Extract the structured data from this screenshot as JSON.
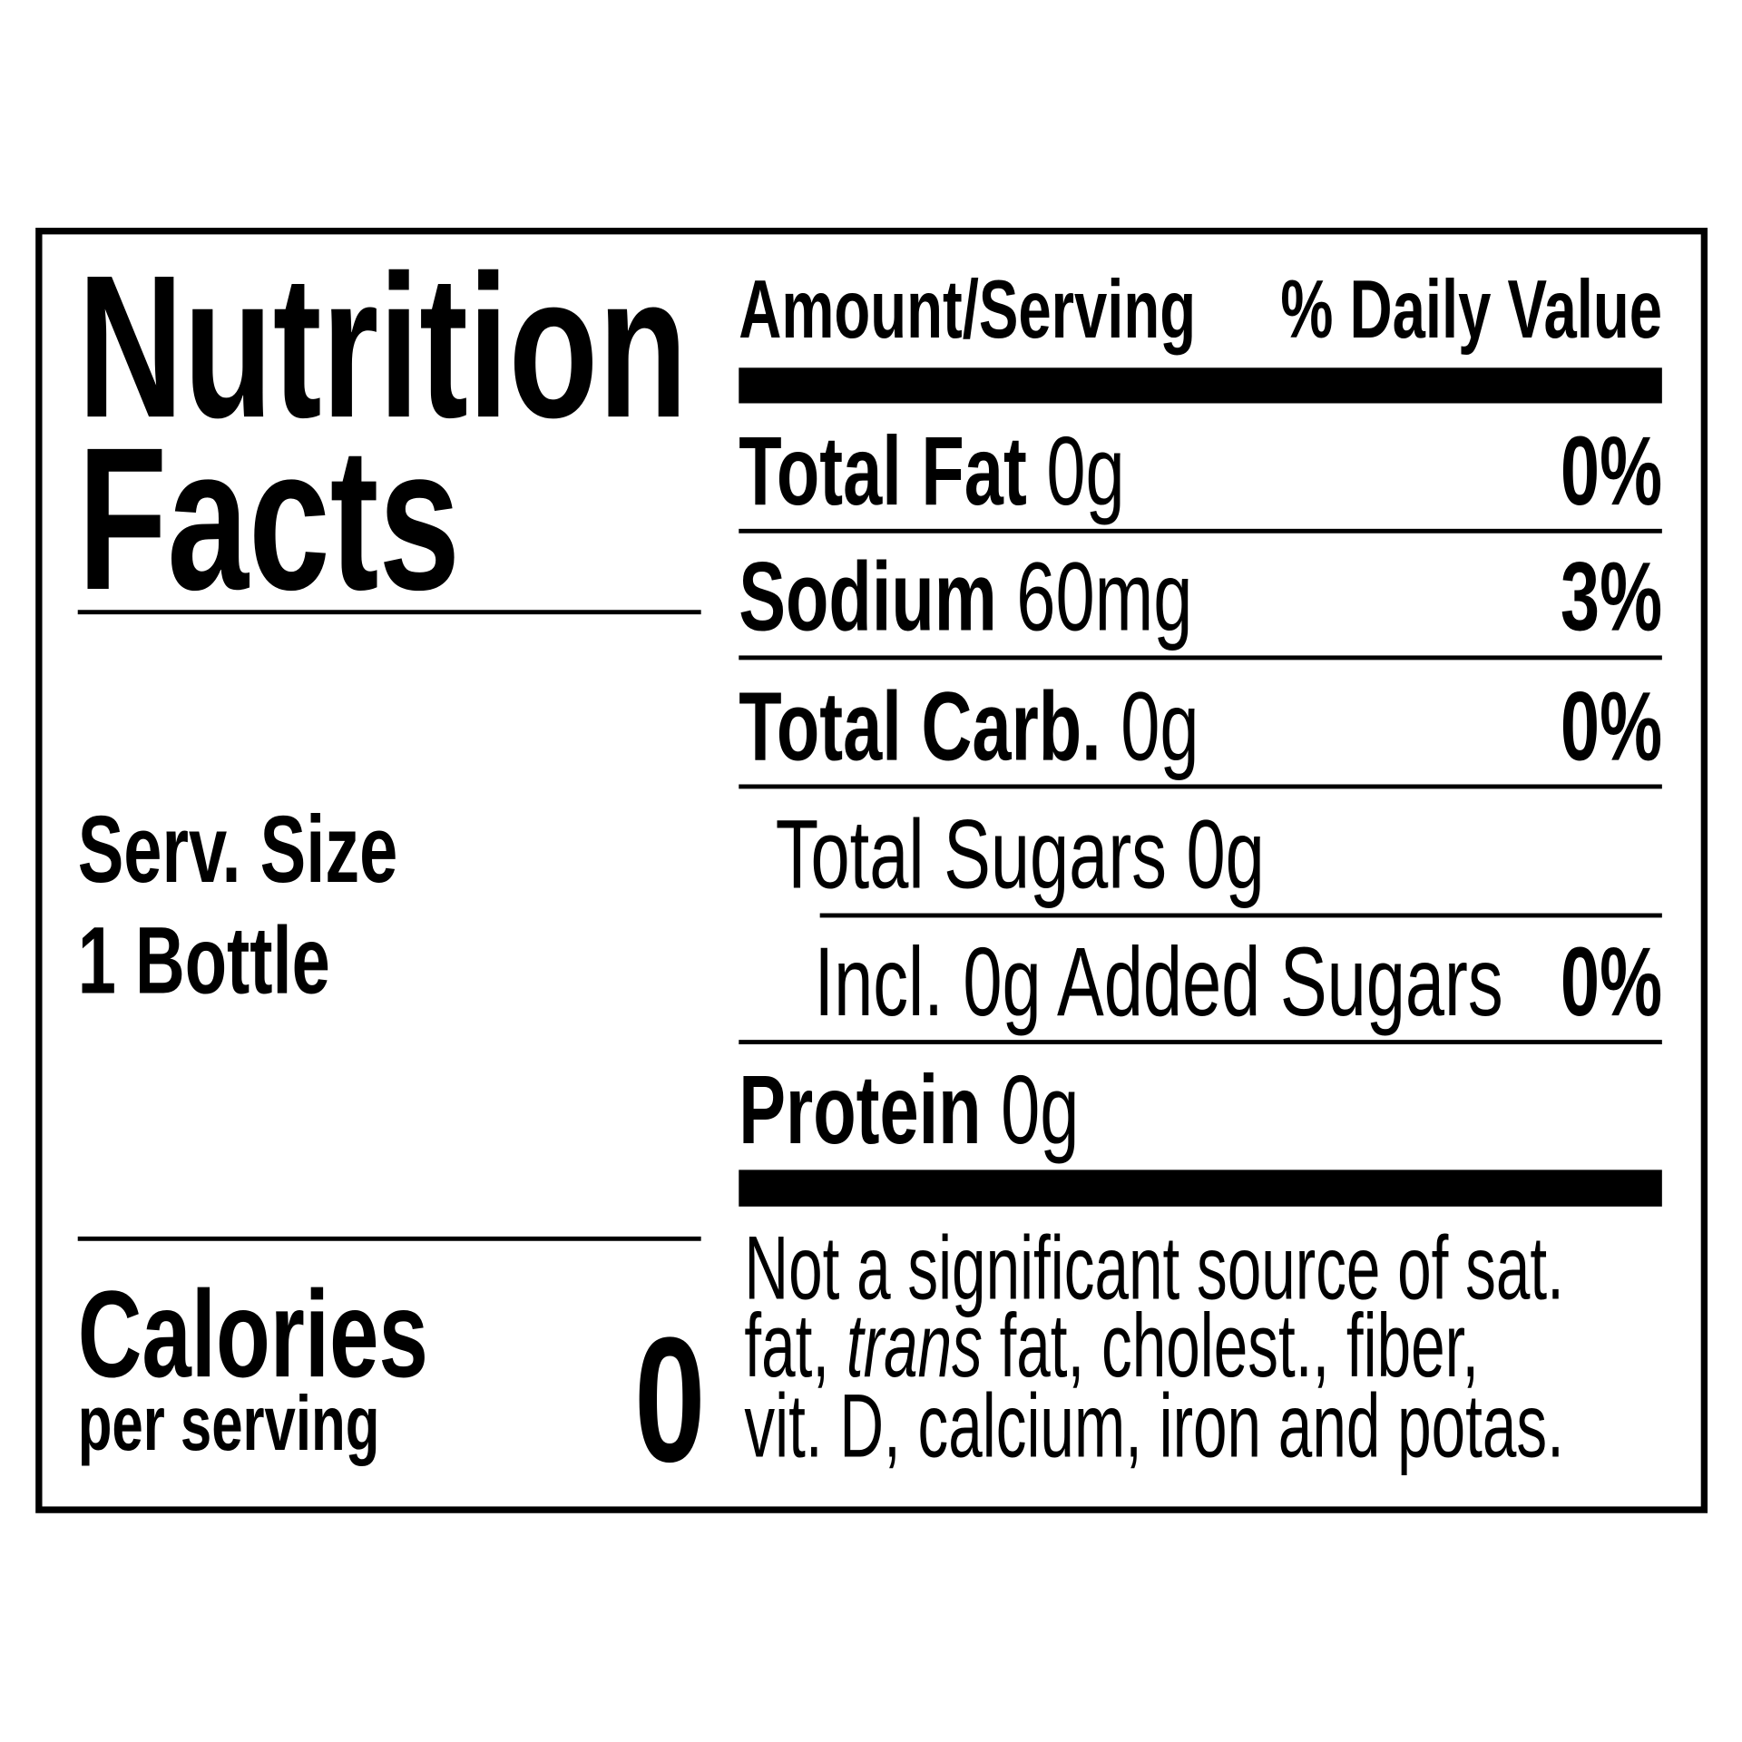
{
  "title": {
    "line1": "Nutrition",
    "line2": "Facts"
  },
  "serving": {
    "label": "Serv. Size",
    "value": "1 Bottle"
  },
  "calories": {
    "label": "Calories",
    "sublabel": "per serving",
    "value": "0"
  },
  "header": {
    "amount": "Amount/Serving",
    "daily_value": "% Daily Value"
  },
  "nutrients": [
    {
      "name": "Total Fat",
      "amount": "0g",
      "dv": "0%"
    },
    {
      "name": "Sodium",
      "amount": "60mg",
      "dv": "3%"
    },
    {
      "name": "Total Carb.",
      "amount": "0g",
      "dv": "0%"
    },
    {
      "name": "Total Sugars 0g"
    },
    {
      "name": "Incl. 0g Added Sugars",
      "dv": "0%"
    },
    {
      "name": "Protein",
      "amount": "0g"
    }
  ],
  "footnote": {
    "line1": "Not a significant source of sat.",
    "line2_a": "fat, ",
    "line2_italic": "trans",
    "line2_b": " fat, cholest., fiber,",
    "line3": "vit. D, calcium, iron and potas."
  }
}
